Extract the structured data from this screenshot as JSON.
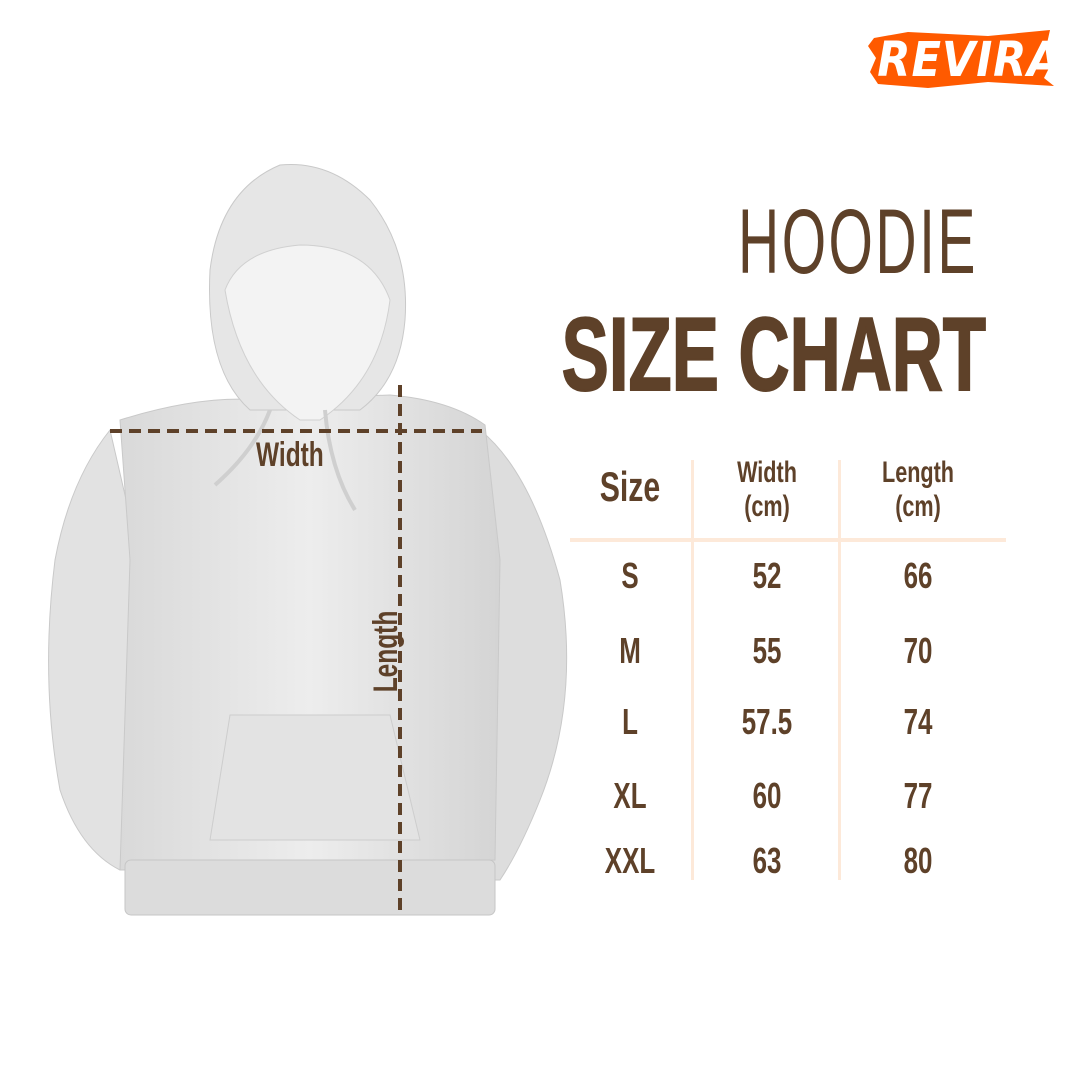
{
  "brand": {
    "logo_text": "REVIRA",
    "color": "#ff5a00"
  },
  "title": {
    "line1": "HOODIE",
    "line2": "SIZE CHART"
  },
  "colors": {
    "text": "#5e4129",
    "table_lines": "#fde9d9",
    "garment": "#e9e9e9"
  },
  "garment": {
    "icon": "hoodie-illustration",
    "width_label": "Width",
    "length_label": "Length"
  },
  "table": {
    "headers": [
      {
        "line1": "Size",
        "line2": ""
      },
      {
        "line1": "Width",
        "line2": "(cm)"
      },
      {
        "line1": "Length",
        "line2": "(cm)"
      }
    ],
    "rows": [
      {
        "size": "S",
        "width": "52",
        "length": "66"
      },
      {
        "size": "M",
        "width": "55",
        "length": "70"
      },
      {
        "size": "L",
        "width": "57.5",
        "length": "74"
      },
      {
        "size": "XL",
        "width": "60",
        "length": "77"
      },
      {
        "size": "XXL",
        "width": "63",
        "length": "80"
      }
    ]
  }
}
